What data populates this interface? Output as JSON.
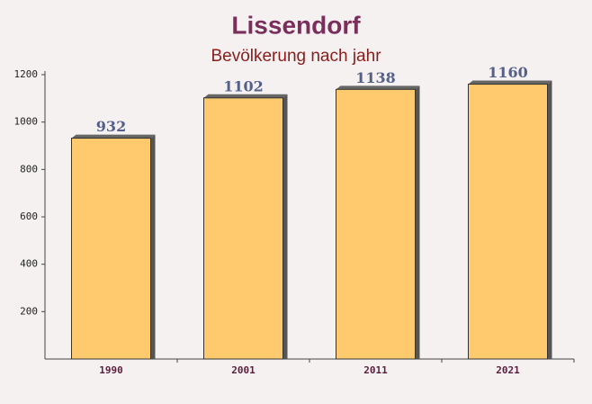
{
  "chart_data": {
    "type": "bar",
    "title": "Lissendorf",
    "subtitle": "Bevölkerung nach jahr",
    "categories": [
      "1990",
      "2001",
      "2011",
      "2021"
    ],
    "values": [
      932,
      1102,
      1138,
      1160
    ],
    "color": "#ffc55e",
    "ylim": [
      0,
      1200
    ],
    "yticks": [
      200,
      400,
      600,
      800,
      1000,
      1200
    ]
  }
}
